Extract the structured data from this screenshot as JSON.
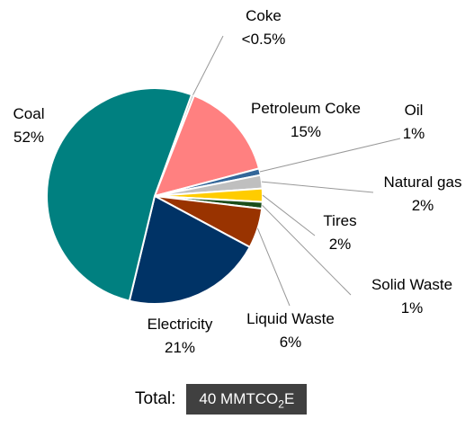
{
  "chart_data": {
    "type": "pie",
    "slices": [
      {
        "label": "Coke",
        "value_label": "<0.5%",
        "value": 0.4,
        "color": "#b0b0b0"
      },
      {
        "label": "Petroleum Coke",
        "value_label": "15%",
        "value": 15,
        "color": "#ff8080"
      },
      {
        "label": "Oil",
        "value_label": "1%",
        "value": 1,
        "color": "#336699"
      },
      {
        "label": "Natural gas",
        "value_label": "2%",
        "value": 2,
        "color": "#bfbfbf"
      },
      {
        "label": "Tires",
        "value_label": "2%",
        "value": 2,
        "color": "#ffcc00"
      },
      {
        "label": "Solid Waste",
        "value_label": "1%",
        "value": 1,
        "color": "#1a4d1a"
      },
      {
        "label": "Liquid Waste",
        "value_label": "6%",
        "value": 6,
        "color": "#993300"
      },
      {
        "label": "Electricity",
        "value_label": "21%",
        "value": 21,
        "color": "#003366"
      },
      {
        "label": "Coal",
        "value_label": "52%",
        "value": 52,
        "color": "#008080"
      }
    ],
    "start_angle_deg": 20
  },
  "total": {
    "label": "Total:",
    "value_prefix": "40 MMTCO",
    "value_sub": "2",
    "value_suffix": "E"
  }
}
